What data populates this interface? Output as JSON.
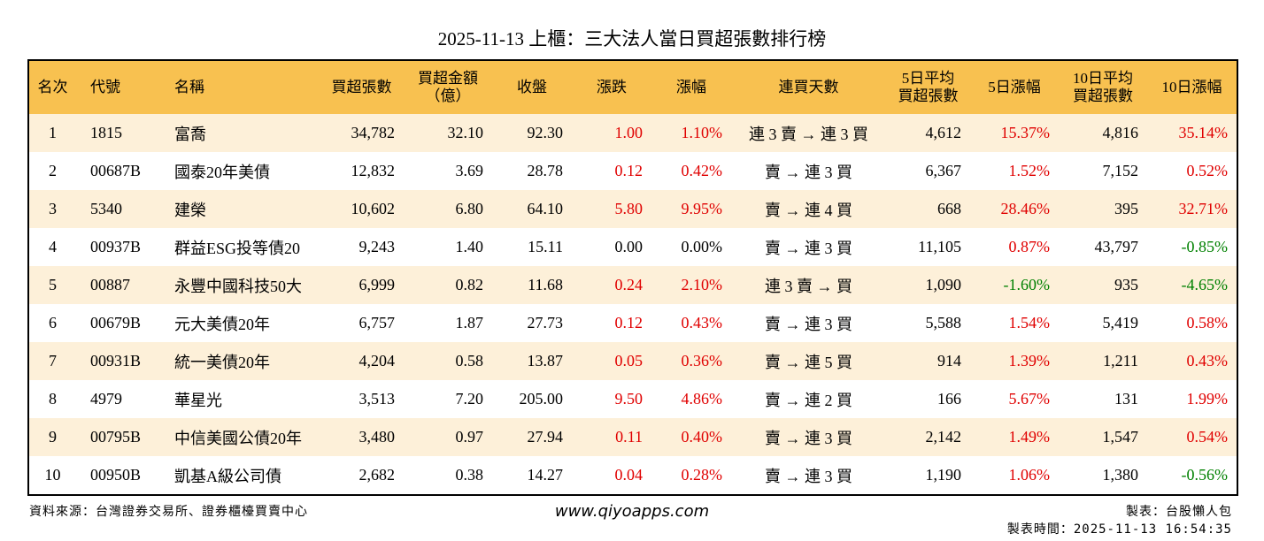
{
  "header": {
    "title": "2025-11-13 上櫃：三大法人當日買超張數排行榜"
  },
  "table": {
    "columns": [
      "名次",
      "代號",
      "名稱",
      "買超張數",
      "買超金額\n（億）",
      "收盤",
      "漲跌",
      "漲幅",
      "連買天數",
      "5日平均\n買超張數",
      "5日漲幅",
      "10日平均\n買超張數",
      "10日漲幅"
    ],
    "rows": [
      [
        "1",
        "1815",
        "富喬",
        "34,782",
        "32.10",
        "92.30",
        "1.00",
        "1.10%",
        "連 3 賣 → 連 3 買",
        "4,612",
        "15.37%",
        "4,816",
        "35.14%"
      ],
      [
        "2",
        "00687B",
        "國泰20年美債",
        "12,832",
        "3.69",
        "28.78",
        "0.12",
        "0.42%",
        "賣 → 連 3 買",
        "6,367",
        "1.52%",
        "7,152",
        "0.52%"
      ],
      [
        "3",
        "5340",
        "建榮",
        "10,602",
        "6.80",
        "64.10",
        "5.80",
        "9.95%",
        "賣 → 連 4 買",
        "668",
        "28.46%",
        "395",
        "32.71%"
      ],
      [
        "4",
        "00937B",
        "群益ESG投等債20",
        "9,243",
        "1.40",
        "15.11",
        "0.00",
        "0.00%",
        "賣 → 連 3 買",
        "11,105",
        "0.87%",
        "43,797",
        "-0.85%"
      ],
      [
        "5",
        "00887",
        "永豐中國科技50大",
        "6,999",
        "0.82",
        "11.68",
        "0.24",
        "2.10%",
        "連 3 賣 → 買",
        "1,090",
        "-1.60%",
        "935",
        "-4.65%"
      ],
      [
        "6",
        "00679B",
        "元大美債20年",
        "6,757",
        "1.87",
        "27.73",
        "0.12",
        "0.43%",
        "賣 → 連 3 買",
        "5,588",
        "1.54%",
        "5,419",
        "0.58%"
      ],
      [
        "7",
        "00931B",
        "統一美債20年",
        "4,204",
        "0.58",
        "13.87",
        "0.05",
        "0.36%",
        "賣 → 連 5 買",
        "914",
        "1.39%",
        "1,211",
        "0.43%"
      ],
      [
        "8",
        "4979",
        "華星光",
        "3,513",
        "7.20",
        "205.00",
        "9.50",
        "4.86%",
        "賣 → 連 2 買",
        "166",
        "5.67%",
        "131",
        "1.99%"
      ],
      [
        "9",
        "00795B",
        "中信美國公債20年",
        "3,480",
        "0.97",
        "27.94",
        "0.11",
        "0.40%",
        "賣 → 連 3 買",
        "2,142",
        "1.49%",
        "1,547",
        "0.54%"
      ],
      [
        "10",
        "00950B",
        "凱基A級公司債",
        "2,682",
        "0.38",
        "14.27",
        "0.04",
        "0.28%",
        "賣 → 連 3 買",
        "1,190",
        "1.06%",
        "1,380",
        "-0.56%"
      ]
    ]
  },
  "footer": {
    "source": "資料來源：台灣證券交易所、證券櫃檯買賣中心",
    "website": "www.qiyoapps.com",
    "maker": "製表：台股懶人包",
    "timestamp": "製表時間：2025-11-13 16:54:35"
  }
}
